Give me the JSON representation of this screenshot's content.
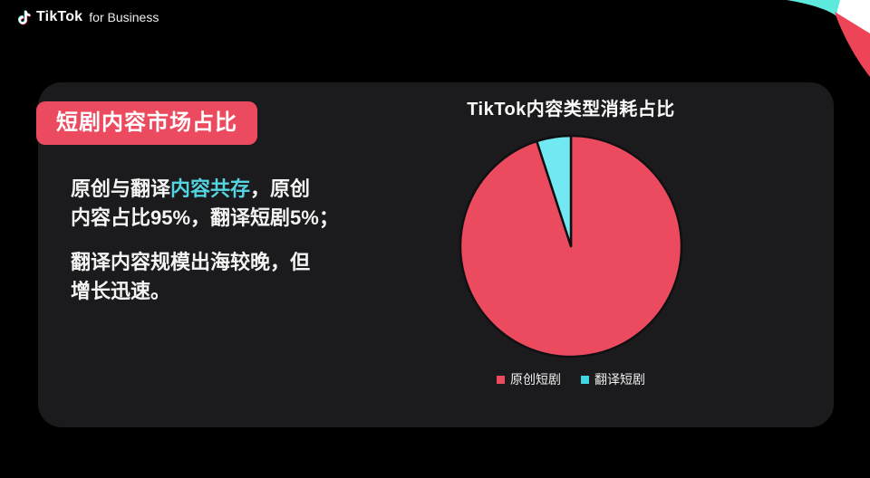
{
  "brand": {
    "name": "TikTok",
    "suffix": "for Business"
  },
  "card": {
    "badge": "短剧内容市场占比",
    "paragraph1": {
      "pre": "原创与翻译",
      "highlight": "内容共存",
      "post_line1": "，原创",
      "line2": "内容占比95%，翻译短剧5%；"
    },
    "paragraph2": {
      "line1": "翻译内容规模出海较晚，但",
      "line2": "增长迅速。"
    }
  },
  "chart_data": {
    "type": "pie",
    "title": "TikTok内容类型消耗占比",
    "labels": [
      "原创短剧",
      "翻译短剧"
    ],
    "values": [
      95,
      5
    ],
    "colors": [
      "#ec4b5f",
      "#72e8f2"
    ],
    "legend_colors": [
      "#ec4b5f",
      "#3fd6e2"
    ],
    "start_angle_deg": 0,
    "direction": "clockwise",
    "legend_position": "bottom"
  },
  "colors": {
    "page_bg": "#000000",
    "card_bg": "#1b1b1d",
    "accent_red": "#ec4b5f",
    "highlight_cyan": "#54d4e0",
    "pie_stroke": "#101012",
    "deco_cyan": "#5ee9dd",
    "deco_red": "#ee4458",
    "deco_white": "#ffffff"
  }
}
